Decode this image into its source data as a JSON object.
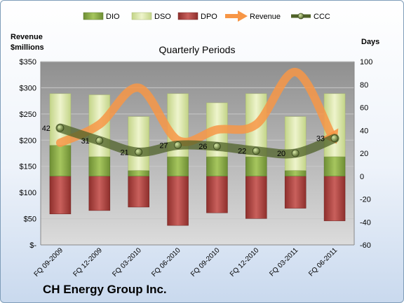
{
  "company_name": "CH Energy Group Inc.",
  "chart_data": {
    "type": "bar",
    "title": "Quarterly Periods",
    "left_axis_label_line1": "Revenue",
    "left_axis_label_line2": "$millions",
    "right_axis_label": "Days",
    "left_ylim": [
      0,
      350
    ],
    "right_ylim": [
      -60,
      100
    ],
    "left_ticks": [
      "$-",
      "$50",
      "$100",
      "$150",
      "$200",
      "$250",
      "$300",
      "$350"
    ],
    "right_ticks": [
      "-60",
      "-40",
      "-20",
      "0",
      "20",
      "40",
      "60",
      "80",
      "100"
    ],
    "categories": [
      "FQ 09-2009",
      "FQ 12-2009",
      "FQ 03-2010",
      "FQ 06-2010",
      "FQ 09-2010",
      "FQ 12-2010",
      "FQ 03-2011",
      "FQ 06-2011"
    ],
    "grid": true,
    "legend_position": "top",
    "series": [
      {
        "name": "DIO",
        "type": "stacked-bar",
        "axis": "right",
        "color": "#8db04a",
        "values": [
          27,
          17,
          5,
          17,
          17,
          17,
          5,
          17
        ]
      },
      {
        "name": "DSO",
        "type": "stacked-bar",
        "axis": "right",
        "color": "#d7e4a4",
        "values": [
          45,
          54,
          47,
          55,
          47,
          55,
          47,
          55
        ]
      },
      {
        "name": "DPO",
        "type": "negative-bar",
        "axis": "right",
        "color": "#c0504d",
        "values": [
          -33,
          -30,
          -27,
          -43,
          -32,
          -37,
          -28,
          -39
        ]
      },
      {
        "name": "Revenue",
        "type": "line",
        "axis": "left",
        "color": "#f79646",
        "values": [
          195,
          230,
          300,
          200,
          220,
          230,
          330,
          200
        ]
      },
      {
        "name": "CCC",
        "type": "line",
        "axis": "right",
        "color": "#4f6228",
        "values": [
          42,
          31,
          21,
          27,
          26,
          22,
          20,
          33
        ],
        "labels": [
          "42",
          "31",
          "21",
          "27",
          "26",
          "22",
          "20",
          "33"
        ]
      }
    ]
  }
}
